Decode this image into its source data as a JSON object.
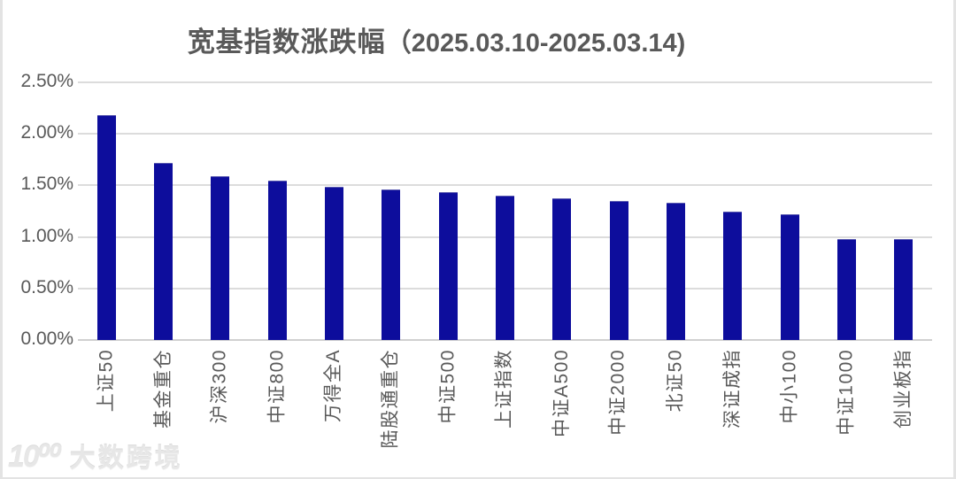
{
  "chart_data": {
    "type": "bar",
    "title": "宽基指数涨跌幅（2025.03.10-2025.03.14)",
    "title_main": "宽基指数涨跌幅",
    "title_period": "（2025.03.10-2025.03.14)",
    "categories": [
      "上证50",
      "基金重仓",
      "沪深300",
      "中证800",
      "万得全A",
      "陆股通重仓",
      "中证500",
      "上证指数",
      "中证A500",
      "中证2000",
      "北证50",
      "深证成指",
      "中小100",
      "中证1000",
      "创业板指"
    ],
    "values": [
      2.17,
      1.71,
      1.58,
      1.54,
      1.48,
      1.45,
      1.43,
      1.39,
      1.37,
      1.34,
      1.32,
      1.24,
      1.21,
      0.97,
      0.97
    ],
    "value_unit": "%",
    "xlabel": "",
    "ylabel": "",
    "ylim": [
      0,
      2.5
    ],
    "yticks": [
      "0.00%",
      "0.50%",
      "1.00%",
      "1.50%",
      "2.00%",
      "2.50%"
    ],
    "grid": true,
    "legend": "none",
    "bar_color": "#0d0d9c",
    "grid_color": "#dcdcdc",
    "axis_text_color": "#595959",
    "title_color": "#595959"
  },
  "watermark": {
    "logo": "10⁰⁰",
    "text": "大数跨境"
  }
}
